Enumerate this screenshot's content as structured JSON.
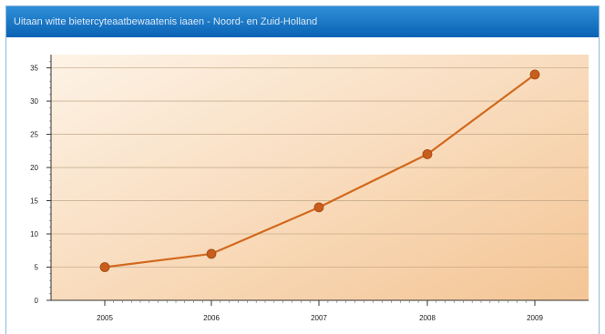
{
  "window": {
    "title": "Uitaan witte bietercyteaatbewaatenis iaaen - Noord- en Zuid-Holland"
  },
  "chart_data": {
    "type": "line",
    "title": "",
    "xlabel": "",
    "ylabel": "",
    "x": [
      "2005",
      "2006",
      "2007",
      "2008",
      "2009"
    ],
    "series": [
      {
        "values": [
          5,
          7,
          14,
          22,
          34
        ]
      }
    ],
    "ylim": [
      0,
      37
    ],
    "yticks": [
      0,
      5,
      10,
      15,
      20,
      25,
      30,
      35
    ],
    "grid": true,
    "legend": "none",
    "colors": {
      "line": "#d2691e",
      "marker": "#c85d1c",
      "plot_bg_light": "#fdf1e2",
      "plot_bg_dark": "#f4c595",
      "title_bar": "#1c78c8"
    }
  }
}
